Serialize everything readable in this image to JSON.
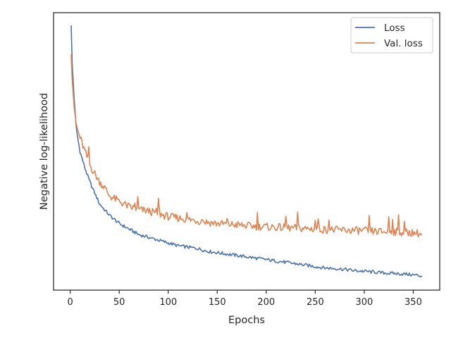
{
  "chart_data": {
    "type": "line",
    "xlabel": "Epochs",
    "ylabel": "Negative log-likelihood",
    "xlim": [
      -17,
      377
    ],
    "ylim": [
      0,
      1
    ],
    "xticks": [
      0,
      50,
      100,
      150,
      200,
      250,
      300,
      350
    ],
    "yticks": [],
    "grid": false,
    "legend": {
      "placement": "top-right"
    },
    "series": [
      {
        "name": "Loss",
        "color": "#4c72b0",
        "x": [
          1,
          2,
          4,
          6,
          8,
          10,
          15,
          20,
          25,
          30,
          35,
          40,
          50,
          60,
          70,
          80,
          90,
          100,
          110,
          120,
          130,
          140,
          150,
          160,
          170,
          180,
          190,
          200,
          210,
          220,
          230,
          240,
          250,
          260,
          270,
          280,
          290,
          300,
          310,
          320,
          330,
          340,
          350,
          355,
          359
        ],
        "values": [
          0.954,
          0.82,
          0.69,
          0.59,
          0.54,
          0.5,
          0.44,
          0.39,
          0.35,
          0.31,
          0.29,
          0.27,
          0.24,
          0.22,
          0.2,
          0.19,
          0.18,
          0.17,
          0.16,
          0.155,
          0.15,
          0.14,
          0.135,
          0.13,
          0.125,
          0.12,
          0.115,
          0.11,
          0.105,
          0.1,
          0.095,
          0.09,
          0.085,
          0.08,
          0.078,
          0.075,
          0.07,
          0.068,
          0.065,
          0.062,
          0.06,
          0.058,
          0.055,
          0.053,
          0.05
        ]
      },
      {
        "name": "Val. loss",
        "color": "#dd8452",
        "x": [
          1,
          2,
          4,
          6,
          8,
          10,
          15,
          20,
          25,
          30,
          35,
          40,
          50,
          60,
          70,
          80,
          90,
          100,
          110,
          120,
          130,
          140,
          150,
          160,
          170,
          180,
          190,
          200,
          210,
          220,
          230,
          240,
          250,
          260,
          270,
          280,
          290,
          300,
          310,
          320,
          330,
          340,
          350,
          355,
          359
        ],
        "values": [
          0.85,
          0.76,
          0.66,
          0.6,
          0.57,
          0.55,
          0.5,
          0.45,
          0.42,
          0.39,
          0.37,
          0.34,
          0.32,
          0.3,
          0.29,
          0.285,
          0.275,
          0.265,
          0.26,
          0.255,
          0.25,
          0.245,
          0.24,
          0.238,
          0.235,
          0.232,
          0.23,
          0.228,
          0.226,
          0.225,
          0.223,
          0.222,
          0.22,
          0.218,
          0.217,
          0.216,
          0.215,
          0.214,
          0.212,
          0.21,
          0.21,
          0.208,
          0.207,
          0.205,
          0.2
        ]
      }
    ]
  }
}
